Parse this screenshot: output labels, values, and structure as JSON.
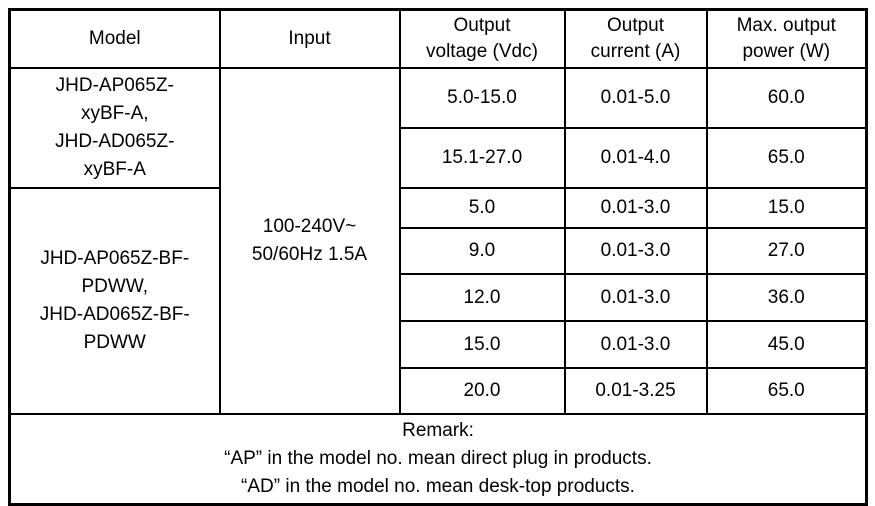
{
  "page": {
    "background_color": "#ffffff",
    "border_color": "#000000",
    "text_color": "#000000"
  },
  "table": {
    "headers": {
      "model": "Model",
      "input": "Input",
      "output_voltage": "Output\nvoltage (Vdc)",
      "output_current": "Output\ncurrent (A)",
      "max_output_power": "Max. output\npower (W)"
    },
    "model_groups": [
      {
        "label": "JHD-AP065Z-\nxyBF-A,\nJHD-AD065Z-\nxyBF-A"
      },
      {
        "label": "JHD-AP065Z-BF-\nPDWW,\nJHD-AD065Z-BF-\nPDWW"
      }
    ],
    "input_value": "100-240V~\n50/60Hz 1.5A",
    "rows": [
      {
        "voltage": "5.0-15.0",
        "current": "0.01-5.0",
        "power": "60.0"
      },
      {
        "voltage": "15.1-27.0",
        "current": "0.01-4.0",
        "power": "65.0"
      },
      {
        "voltage": "5.0",
        "current": "0.01-3.0",
        "power": "15.0"
      },
      {
        "voltage": "9.0",
        "current": "0.01-3.0",
        "power": "27.0"
      },
      {
        "voltage": "12.0",
        "current": "0.01-3.0",
        "power": "36.0"
      },
      {
        "voltage": "15.0",
        "current": "0.01-3.0",
        "power": "45.0"
      },
      {
        "voltage": "20.0",
        "current": "0.01-3.25",
        "power": "65.0"
      }
    ],
    "remark": {
      "title": "Remark:",
      "line1": "“AP” in the model no. mean direct plug in products.",
      "line2": "“AD” in the model no. mean desk-top products."
    }
  }
}
